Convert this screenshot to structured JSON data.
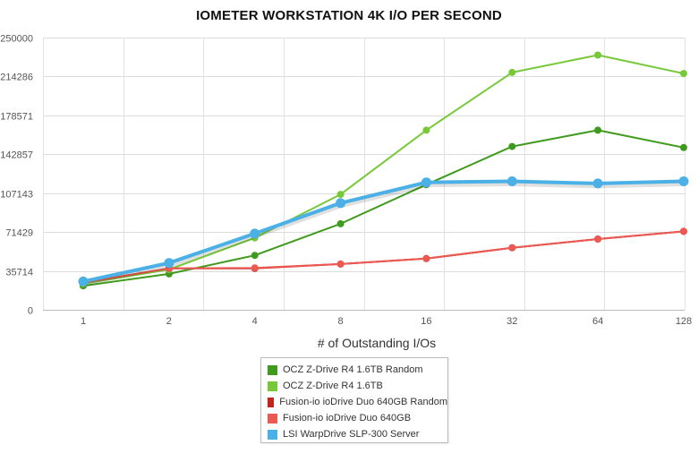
{
  "chart_data": {
    "type": "line",
    "title": "IOMETER WORKSTATION 4K I/O PER SECOND",
    "xlabel": "# of Outstanding I/Os",
    "ylabel": "",
    "categories": [
      "1",
      "2",
      "4",
      "8",
      "16",
      "32",
      "64",
      "128"
    ],
    "yticks": [
      "0",
      "35714",
      "71429",
      "107143",
      "142857",
      "178571",
      "214286",
      "250000"
    ],
    "ylim": [
      0,
      250000
    ],
    "grid": true,
    "legend_position": "bottom-center",
    "series": [
      {
        "name": "OCZ Z-Drive R4 1.6TB Random",
        "color": "#3f9a1e",
        "values": [
          22000,
          33000,
          50000,
          79000,
          115000,
          150000,
          165000,
          149000
        ]
      },
      {
        "name": "OCZ Z-Drive R4 1.6TB",
        "color": "#78c93a",
        "values": [
          24000,
          37000,
          66000,
          106000,
          165000,
          218000,
          234000,
          217000
        ]
      },
      {
        "name": "Fusion-io ioDrive Duo 640GB Random",
        "color": "#c4241e",
        "values": [
          25000,
          38000,
          38000,
          42000,
          47000,
          57000,
          65000,
          72000
        ]
      },
      {
        "name": "Fusion-io ioDrive Duo 640GB",
        "color": "#ea5a52",
        "values": [
          25000,
          38000,
          38500,
          42000,
          47000,
          57000,
          65000,
          72000
        ]
      },
      {
        "name": "LSI WarpDrive SLP-300 Server",
        "color": "#4ab0e6",
        "values": [
          26000,
          43000,
          70000,
          98000,
          117000,
          118000,
          116000,
          118000
        ]
      }
    ]
  }
}
